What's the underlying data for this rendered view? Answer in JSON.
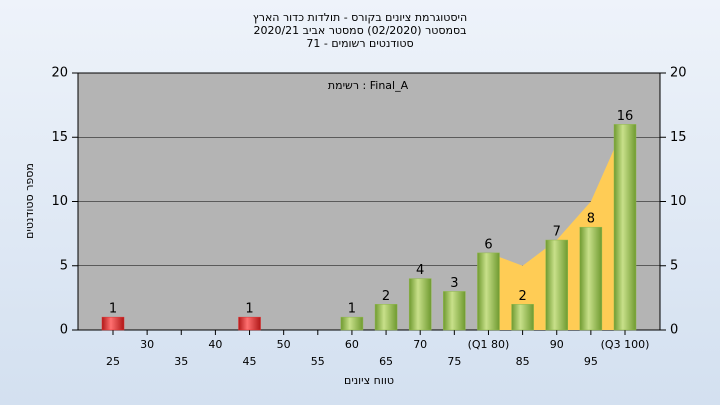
{
  "chart_data": {
    "type": "bar",
    "title": [
      "היסטוגרמת ציונים בקורס - תולדות כדור הארץ",
      "בסמסטר (02/2020) סמסטר אביב 2020/21",
      "סטודנטים רשומים - 71"
    ],
    "annotation": "רשימת : Final_A",
    "x_label": "טווח ציונים",
    "y_label": "מספר סטודנטים",
    "categories": [
      "25",
      "30",
      "35",
      "40",
      "45",
      "50",
      "55",
      "60",
      "65",
      "70",
      "75",
      "(Q1 80)",
      "85",
      "90",
      "95",
      "(Q3 100)"
    ],
    "values": [
      1,
      0,
      0,
      0,
      1,
      0,
      0,
      1,
      2,
      4,
      3,
      6,
      2,
      7,
      8,
      16
    ],
    "colors": [
      "#e03030",
      "#e03030",
      "#e03030",
      "#e03030",
      "#e03030",
      "#8fb84a",
      "#8fb84a",
      "#8fb84a",
      "#8fb84a",
      "#8fb84a",
      "#8fb84a",
      "#8fb84a",
      "#8fb84a",
      "#8fb84a",
      "#8fb84a",
      "#8fb84a"
    ],
    "area": {
      "color": "#ffcc55",
      "values": [
        null,
        null,
        null,
        null,
        null,
        null,
        null,
        null,
        null,
        null,
        null,
        6,
        5,
        7,
        10,
        16
      ]
    },
    "ylim": [
      0,
      20
    ],
    "yticks": [
      0,
      5,
      10,
      15,
      20
    ],
    "y2lim": [
      0,
      20
    ],
    "y2ticks": [
      0,
      5,
      10,
      15,
      20
    ],
    "grid": true
  }
}
